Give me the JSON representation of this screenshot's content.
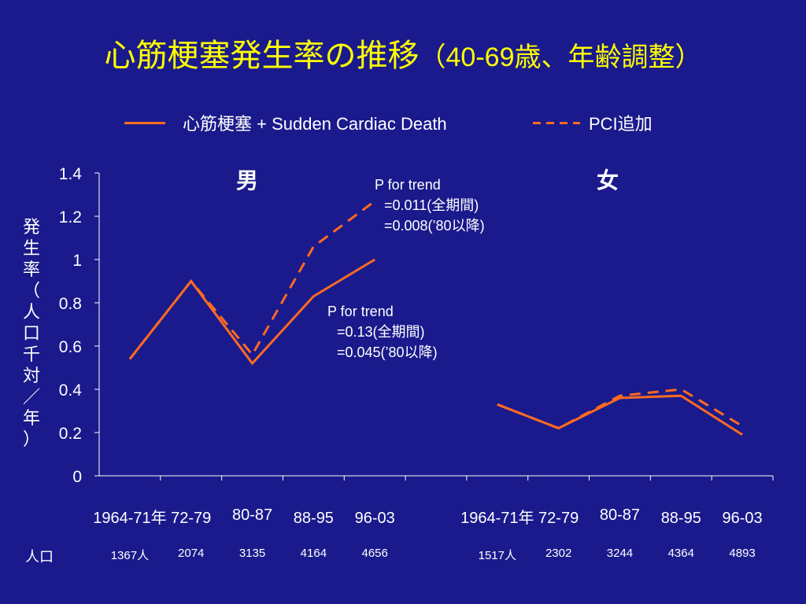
{
  "title": {
    "main": "心筋梗塞発生率の推移",
    "sub": "（40-69歳、年齢調整）"
  },
  "legend": {
    "solid_label": "心筋梗塞 + Sudden Cardiac Death",
    "dash_label": "PCI追加"
  },
  "colors": {
    "background": "#1a1a8c",
    "title": "#ffff00",
    "line": "#ff6a21",
    "text": "#ffffff"
  },
  "y_axis_label": "発生率（人口千対／年）",
  "panels": {
    "men": "男",
    "women": "女"
  },
  "annotations": {
    "men": [
      "P for trend",
      "=0.011(全期間)",
      "=0.008(’80以降)"
    ],
    "women": [
      "P for trend",
      "=0.13(全期間)",
      "=0.045(’80以降)"
    ]
  },
  "population": {
    "label": "人口",
    "men": [
      "1367人",
      "2074",
      "3135",
      "4164",
      "4656"
    ],
    "women": [
      "1517人",
      "2302",
      "3244",
      "4364",
      "4893"
    ]
  },
  "chart_data": {
    "type": "line",
    "ylim": [
      0,
      1.4
    ],
    "yticks": [
      "0",
      "0.2",
      "0.4",
      "0.6",
      "0.8",
      "1",
      "1.2",
      "1.4"
    ],
    "groups": [
      {
        "name": "男",
        "categories": [
          "1964-71年",
          "72-79",
          "80-87",
          "88-95",
          "96-03"
        ],
        "series": [
          {
            "name": "心筋梗塞 + Sudden Cardiac Death",
            "style": "solid",
            "values": [
              0.54,
              0.9,
              0.52,
              0.83,
              1.0
            ]
          },
          {
            "name": "PCI追加",
            "style": "dashed",
            "values": [
              0.54,
              0.9,
              0.56,
              1.06,
              1.27
            ]
          }
        ]
      },
      {
        "name": "女",
        "categories": [
          "1964-71年",
          "72-79",
          "80-87",
          "88-95",
          "96-03"
        ],
        "series": [
          {
            "name": "心筋梗塞 + Sudden Cardiac Death",
            "style": "solid",
            "values": [
              0.33,
              0.22,
              0.36,
              0.37,
              0.19
            ]
          },
          {
            "name": "PCI追加",
            "style": "dashed",
            "values": [
              0.33,
              0.22,
              0.37,
              0.4,
              0.23
            ]
          }
        ]
      }
    ]
  }
}
